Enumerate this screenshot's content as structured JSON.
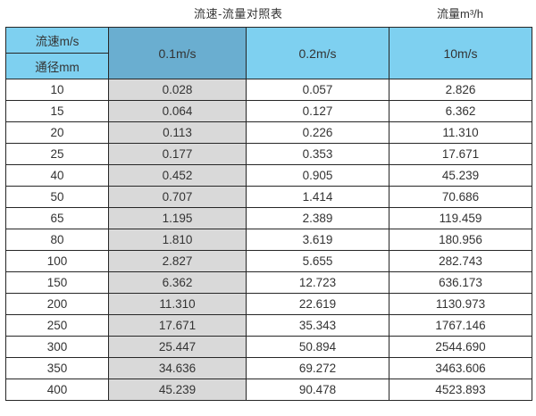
{
  "header": {
    "title": "流速-流量对照表",
    "unit_label": "流量m³/h"
  },
  "chart_data": {
    "type": "table",
    "title": "流速-流量对照表",
    "unit": "流量m³/h",
    "corner_top": "流速m/s",
    "corner_bottom": "通径mm",
    "columns": [
      "0.1m/s",
      "0.2m/s",
      "10m/s"
    ],
    "rows": [
      {
        "dn": "10",
        "values": [
          "0.028",
          "0.057",
          "2.826"
        ]
      },
      {
        "dn": "15",
        "values": [
          "0.064",
          "0.127",
          "6.362"
        ]
      },
      {
        "dn": "20",
        "values": [
          "0.113",
          "0.226",
          "11.310"
        ]
      },
      {
        "dn": "25",
        "values": [
          "0.177",
          "0.353",
          "17.671"
        ]
      },
      {
        "dn": "40",
        "values": [
          "0.452",
          "0.905",
          "45.239"
        ]
      },
      {
        "dn": "50",
        "values": [
          "0.707",
          "1.414",
          "70.686"
        ]
      },
      {
        "dn": "65",
        "values": [
          "1.195",
          "2.389",
          "119.459"
        ]
      },
      {
        "dn": "80",
        "values": [
          "1.810",
          "3.619",
          "180.956"
        ]
      },
      {
        "dn": "100",
        "values": [
          "2.827",
          "5.655",
          "282.743"
        ]
      },
      {
        "dn": "150",
        "values": [
          "6.362",
          "12.723",
          "636.173"
        ]
      },
      {
        "dn": "200",
        "values": [
          "11.310",
          "22.619",
          "1130.973"
        ]
      },
      {
        "dn": "250",
        "values": [
          "17.671",
          "35.343",
          "1767.146"
        ]
      },
      {
        "dn": "300",
        "values": [
          "25.447",
          "50.894",
          "2544.690"
        ]
      },
      {
        "dn": "350",
        "values": [
          "34.636",
          "69.272",
          "3463.606"
        ]
      },
      {
        "dn": "400",
        "values": [
          "45.239",
          "90.478",
          "4523.893"
        ]
      }
    ]
  },
  "colors": {
    "header_blue": "#7ed0f0",
    "header_blue_dark": "#6aaed0",
    "first_value_column_gray": "#d9d9d9",
    "border": "#262626",
    "text": "#333333"
  }
}
